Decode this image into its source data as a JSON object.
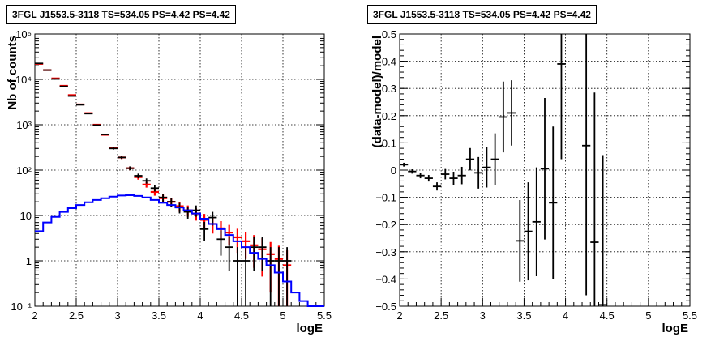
{
  "chart_data": [
    {
      "type": "line",
      "title": "3FGL J1553.5-3118 TS=534.05 PS=4.42 PS=4.42",
      "xlabel": "logE",
      "ylabel": "Nb of counts",
      "xlim": [
        2,
        5.5
      ],
      "ylim": [
        0.1,
        100000
      ],
      "yscale": "log",
      "grid": true,
      "x_ticks": [
        "2",
        "2.5",
        "3",
        "3.5",
        "4",
        "4.5",
        "5",
        "5.5"
      ],
      "y_ticks": [
        "10⁻¹",
        "1",
        "10",
        "10²",
        "10³",
        "10⁴",
        "10⁵"
      ],
      "series": [
        {
          "color": "#ff0000",
          "style": "histogram-errorbars",
          "x": [
            2.05,
            2.15,
            2.25,
            2.35,
            2.45,
            2.55,
            2.65,
            2.75,
            2.85,
            2.95,
            3.05,
            3.15,
            3.25,
            3.35,
            3.45,
            3.55,
            3.65,
            3.75,
            3.85,
            3.95,
            4.05,
            4.15,
            4.25,
            4.35,
            4.45,
            4.55,
            4.65,
            4.75,
            4.85,
            4.95,
            5.05
          ],
          "y": [
            22000,
            16000,
            10500,
            7200,
            4500,
            2800,
            1800,
            1000,
            600,
            310,
            190,
            110,
            70,
            48,
            33,
            24,
            20,
            16,
            13,
            11,
            8,
            6.5,
            5.2,
            4.2,
            3.3,
            2.7,
            2.2,
            1.8,
            1.4,
            1.1,
            0.8
          ],
          "err": [
            150,
            130,
            100,
            85,
            67,
            53,
            42,
            32,
            25,
            18,
            14,
            10.5,
            8.4,
            6.9,
            5.7,
            4.9,
            4.5,
            4.0,
            3.6,
            3.3,
            2.8,
            2.5,
            2.3,
            2.0,
            1.8,
            1.6,
            1.5,
            1.35,
            1.2,
            1.05,
            0.9
          ]
        },
        {
          "color": "#000000",
          "style": "errorbars",
          "x": [
            2.05,
            2.15,
            2.25,
            2.35,
            2.45,
            2.55,
            2.65,
            2.75,
            2.85,
            2.95,
            3.05,
            3.15,
            3.25,
            3.35,
            3.45,
            3.55,
            3.65,
            3.75,
            3.85,
            3.95,
            4.05,
            4.15,
            4.25,
            4.35,
            4.45,
            4.55,
            4.65,
            4.75,
            4.85,
            4.95,
            5.05
          ],
          "y": [
            22500,
            16000,
            10200,
            7000,
            4300,
            2750,
            1760,
            980,
            610,
            300,
            190,
            110,
            75,
            58,
            40,
            25,
            20,
            15,
            12,
            13,
            5,
            9,
            3,
            2,
            1,
            1,
            2,
            2,
            1,
            1,
            1
          ],
          "err": [
            150,
            126,
            101,
            84,
            66,
            52,
            42,
            31,
            25,
            17,
            14,
            10.5,
            8.7,
            7.6,
            6.3,
            5,
            4.5,
            3.9,
            3.5,
            3.6,
            2.2,
            3,
            1.7,
            1.4,
            1,
            1,
            1.4,
            1.4,
            1,
            1,
            1
          ]
        },
        {
          "color": "#0000ff",
          "style": "step",
          "x": [
            2.05,
            2.15,
            2.25,
            2.35,
            2.45,
            2.55,
            2.65,
            2.75,
            2.85,
            2.95,
            3.05,
            3.15,
            3.25,
            3.35,
            3.45,
            3.55,
            3.65,
            3.75,
            3.85,
            3.95,
            4.05,
            4.15,
            4.25,
            4.35,
            4.45,
            4.55,
            4.65,
            4.75,
            4.85,
            4.95,
            5.05,
            5.15,
            5.25,
            5.35,
            5.45
          ],
          "y": [
            4.5,
            7.0,
            9.3,
            12,
            14.5,
            17,
            19.5,
            22,
            24,
            26,
            27.5,
            28,
            27,
            25,
            22,
            19,
            17,
            15,
            13,
            11,
            8.5,
            6.5,
            5.0,
            3.7,
            2.7,
            2.0,
            1.5,
            1.1,
            0.8,
            0.55,
            0.35,
            0.2,
            0.13,
            0.1,
            0.1
          ]
        }
      ]
    },
    {
      "type": "scatter",
      "title": "3FGL J1553.5-3118 TS=534.05 PS=4.42 PS=4.42",
      "xlabel": "logE",
      "ylabel": "(data-model)/model",
      "xlim": [
        2,
        5.5
      ],
      "ylim": [
        -0.5,
        0.5
      ],
      "grid": true,
      "x_ticks": [
        "2",
        "2.5",
        "3",
        "3.5",
        "4",
        "4.5",
        "5",
        "5.5"
      ],
      "y_ticks": [
        "−0.5",
        "−0.4",
        "−0.3",
        "−0.2",
        "−0.1",
        "0",
        "0.1",
        "0.2",
        "0.3",
        "0.4",
        "0.5"
      ],
      "series": [
        {
          "color": "#000000",
          "style": "errorbars",
          "x": [
            2.05,
            2.15,
            2.25,
            2.35,
            2.45,
            2.55,
            2.65,
            2.75,
            2.85,
            2.95,
            3.05,
            3.15,
            3.25,
            3.35,
            3.45,
            3.55,
            3.65,
            3.75,
            3.85,
            3.95,
            4.25,
            4.35,
            4.45
          ],
          "y": [
            0.02,
            -0.005,
            -0.02,
            -0.03,
            -0.06,
            -0.015,
            -0.03,
            -0.02,
            0.04,
            -0.01,
            0.01,
            0.04,
            0.195,
            0.21,
            -0.26,
            -0.225,
            -0.19,
            0.005,
            -0.12,
            0.39,
            0.09,
            -0.265,
            -0.495
          ],
          "err": [
            0.007,
            0.008,
            0.01,
            0.012,
            0.015,
            0.019,
            0.024,
            0.032,
            0.041,
            0.058,
            0.074,
            0.095,
            0.13,
            0.12,
            0.15,
            0.18,
            0.2,
            0.26,
            0.28,
            0.35,
            0.55,
            0.55,
            0.55
          ]
        }
      ]
    }
  ]
}
